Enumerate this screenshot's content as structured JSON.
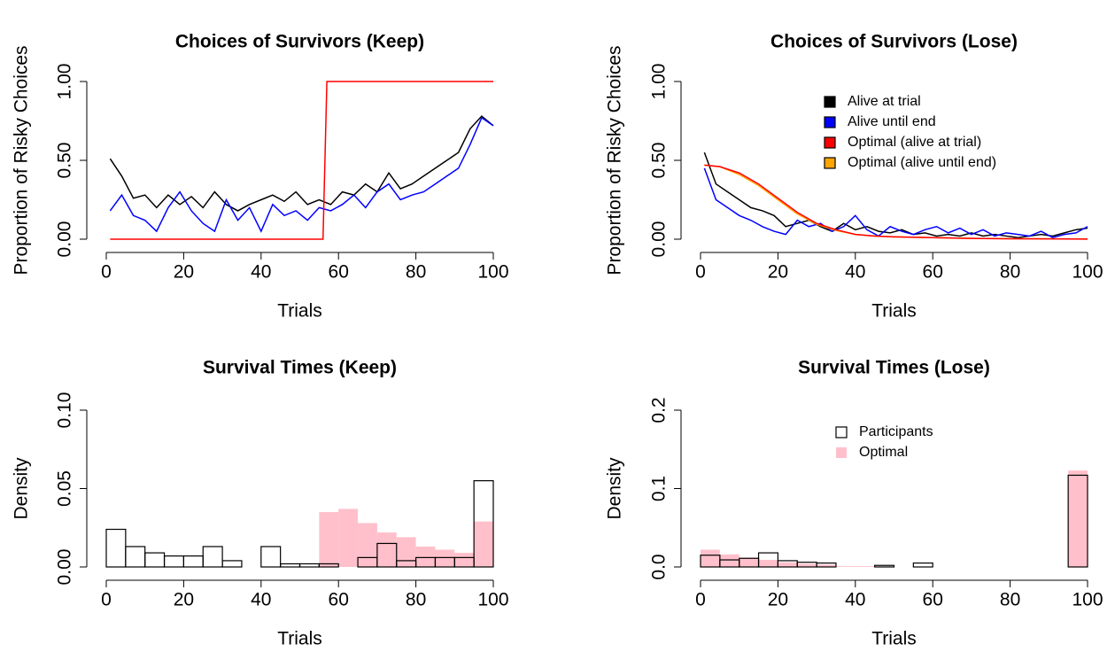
{
  "chart_data": [
    {
      "type": "line",
      "title": "Choices of Survivors (Keep)",
      "xlabel": "Trials",
      "ylabel": "Proportion of Risky Choices",
      "xlim": [
        0,
        100
      ],
      "xticks": [
        0,
        20,
        40,
        60,
        80,
        100
      ],
      "ylim": [
        0,
        1
      ],
      "yticks": [
        {
          "value": 0,
          "label": "0.00"
        },
        {
          "value": 0.5,
          "label": "0.50"
        },
        {
          "value": 1,
          "label": "1.00"
        }
      ],
      "series": [
        {
          "color": "#000000",
          "x": [
            1,
            4,
            7,
            10,
            13,
            16,
            19,
            22,
            25,
            28,
            31,
            34,
            37,
            40,
            43,
            46,
            49,
            52,
            55,
            58,
            61,
            64,
            67,
            70,
            73,
            76,
            79,
            82,
            85,
            88,
            91,
            94,
            97,
            100
          ],
          "values": [
            0.51,
            0.4,
            0.26,
            0.28,
            0.2,
            0.28,
            0.22,
            0.27,
            0.2,
            0.3,
            0.22,
            0.18,
            0.22,
            0.25,
            0.28,
            0.24,
            0.3,
            0.22,
            0.25,
            0.22,
            0.3,
            0.28,
            0.35,
            0.3,
            0.42,
            0.32,
            0.35,
            0.4,
            0.45,
            0.5,
            0.55,
            0.7,
            0.78,
            0.72
          ]
        },
        {
          "color": "#0000ff",
          "x": [
            1,
            4,
            7,
            10,
            13,
            16,
            19,
            22,
            25,
            28,
            31,
            34,
            37,
            40,
            43,
            46,
            49,
            52,
            55,
            58,
            61,
            64,
            67,
            70,
            73,
            76,
            79,
            82,
            85,
            88,
            91,
            94,
            97,
            100
          ],
          "values": [
            0.18,
            0.28,
            0.15,
            0.12,
            0.05,
            0.2,
            0.3,
            0.18,
            0.1,
            0.05,
            0.25,
            0.12,
            0.2,
            0.05,
            0.22,
            0.15,
            0.18,
            0.12,
            0.2,
            0.18,
            0.22,
            0.28,
            0.2,
            0.3,
            0.35,
            0.25,
            0.28,
            0.3,
            0.35,
            0.4,
            0.45,
            0.6,
            0.77,
            0.72
          ]
        },
        {
          "color": "#ff0000",
          "x": [
            1,
            56,
            57,
            100
          ],
          "values": [
            0,
            0,
            1,
            1
          ]
        }
      ]
    },
    {
      "type": "line",
      "title": "Choices of Survivors (Lose)",
      "xlabel": "Trials",
      "ylabel": "Proportion of Risky Choices",
      "xlim": [
        0,
        100
      ],
      "xticks": [
        0,
        20,
        40,
        60,
        80,
        100
      ],
      "ylim": [
        0,
        1
      ],
      "yticks": [
        {
          "value": 0,
          "label": "0.00"
        },
        {
          "value": 0.5,
          "label": "0.50"
        },
        {
          "value": 1,
          "label": "1.00"
        }
      ],
      "legend": "topright",
      "series": [
        {
          "name": "Alive at trial",
          "color": "#000000",
          "x": [
            1,
            4,
            7,
            10,
            13,
            16,
            19,
            22,
            25,
            28,
            31,
            34,
            37,
            40,
            43,
            46,
            49,
            52,
            55,
            58,
            61,
            64,
            67,
            70,
            73,
            76,
            79,
            82,
            85,
            88,
            91,
            94,
            97,
            100
          ],
          "values": [
            0.55,
            0.35,
            0.3,
            0.25,
            0.2,
            0.18,
            0.15,
            0.08,
            0.1,
            0.12,
            0.08,
            0.05,
            0.1,
            0.06,
            0.08,
            0.05,
            0.04,
            0.06,
            0.03,
            0.04,
            0.02,
            0.03,
            0.02,
            0.04,
            0.02,
            0.03,
            0.02,
            0.01,
            0.02,
            0.03,
            0.02,
            0.04,
            0.06,
            0.07
          ]
        },
        {
          "name": "Alive until end",
          "color": "#0000ff",
          "x": [
            1,
            4,
            7,
            10,
            13,
            16,
            19,
            22,
            25,
            28,
            31,
            34,
            37,
            40,
            43,
            46,
            49,
            52,
            55,
            58,
            61,
            64,
            67,
            70,
            73,
            76,
            79,
            82,
            85,
            88,
            91,
            94,
            97,
            100
          ],
          "values": [
            0.45,
            0.25,
            0.2,
            0.15,
            0.12,
            0.08,
            0.05,
            0.03,
            0.12,
            0.08,
            0.1,
            0.05,
            0.08,
            0.15,
            0.06,
            0.02,
            0.08,
            0.05,
            0.03,
            0.06,
            0.08,
            0.04,
            0.07,
            0.03,
            0.06,
            0.02,
            0.04,
            0.03,
            0.02,
            0.05,
            0.01,
            0.03,
            0.04,
            0.08
          ]
        },
        {
          "name": "Optimal (alive until end)",
          "color": "#ffa500",
          "x": [
            1,
            5,
            10,
            15,
            20,
            25,
            30,
            35,
            40,
            45,
            50,
            60,
            70,
            80,
            90,
            100
          ],
          "values": [
            0.47,
            0.46,
            0.41,
            0.34,
            0.25,
            0.16,
            0.095,
            0.055,
            0.03,
            0.02,
            0.015,
            0.01,
            0.005,
            0.003,
            0.002,
            0.001
          ]
        },
        {
          "name": "Optimal (alive at trial)",
          "color": "#ff0000",
          "x": [
            1,
            5,
            10,
            15,
            20,
            25,
            30,
            35,
            40,
            45,
            50,
            60,
            70,
            80,
            90,
            100
          ],
          "values": [
            0.47,
            0.46,
            0.42,
            0.35,
            0.26,
            0.17,
            0.1,
            0.06,
            0.03,
            0.02,
            0.015,
            0.01,
            0.005,
            0.003,
            0.002,
            0.001
          ]
        }
      ]
    },
    {
      "type": "histogram",
      "title": "Survival Times (Keep)",
      "xlabel": "Trials",
      "ylabel": "Density",
      "xlim": [
        0,
        100
      ],
      "xticks": [
        0,
        20,
        40,
        60,
        80,
        100
      ],
      "ylim": [
        0,
        0.1
      ],
      "yticks": [
        {
          "value": 0,
          "label": "0.00"
        },
        {
          "value": 0.05,
          "label": "0.05"
        },
        {
          "value": 0.1,
          "label": "0.10"
        }
      ],
      "bins": [
        0,
        5,
        10,
        15,
        20,
        25,
        30,
        35,
        40,
        45,
        50,
        55,
        60,
        65,
        70,
        75,
        80,
        85,
        90,
        95,
        100
      ],
      "series": [
        {
          "color": "#ffc0cb",
          "values": [
            0,
            0,
            0,
            0,
            0,
            0,
            0,
            0,
            0,
            0,
            0,
            0.035,
            0.037,
            0.028,
            0.022,
            0.019,
            0.013,
            0.011,
            0.009,
            0.029
          ]
        },
        {
          "color": "none",
          "values": [
            0.024,
            0.013,
            0.009,
            0.007,
            0.007,
            0.013,
            0.004,
            0,
            0.013,
            0.002,
            0.002,
            0.002,
            0,
            0.006,
            0.015,
            0.004,
            0.006,
            0.006,
            0.006,
            0.055
          ]
        }
      ]
    },
    {
      "type": "histogram",
      "title": "Survival Times (Lose)",
      "xlabel": "Trials",
      "ylabel": "Density",
      "xlim": [
        0,
        100
      ],
      "xticks": [
        0,
        20,
        40,
        60,
        80,
        100
      ],
      "ylim": [
        0,
        0.2
      ],
      "yticks": [
        {
          "value": 0,
          "label": "0.0"
        },
        0.1,
        0.2
      ],
      "legend": "topright",
      "bins": [
        0,
        5,
        10,
        15,
        20,
        25,
        30,
        35,
        40,
        45,
        50,
        55,
        60,
        65,
        70,
        75,
        80,
        85,
        90,
        95,
        100
      ],
      "series": [
        {
          "name": "Optimal",
          "color": "#ffc0cb",
          "values": [
            0.022,
            0.016,
            0.012,
            0.009,
            0.006,
            0.004,
            0.003,
            0.001,
            0.001,
            0,
            0,
            0,
            0,
            0,
            0,
            0,
            0,
            0,
            0,
            0.123
          ]
        },
        {
          "name": "Participants",
          "color": "none",
          "values": [
            0.015,
            0.009,
            0.011,
            0.018,
            0.008,
            0.006,
            0.005,
            0,
            0,
            0.002,
            0,
            0.005,
            0,
            0,
            0,
            0,
            0,
            0,
            0,
            0.117
          ]
        }
      ]
    }
  ]
}
